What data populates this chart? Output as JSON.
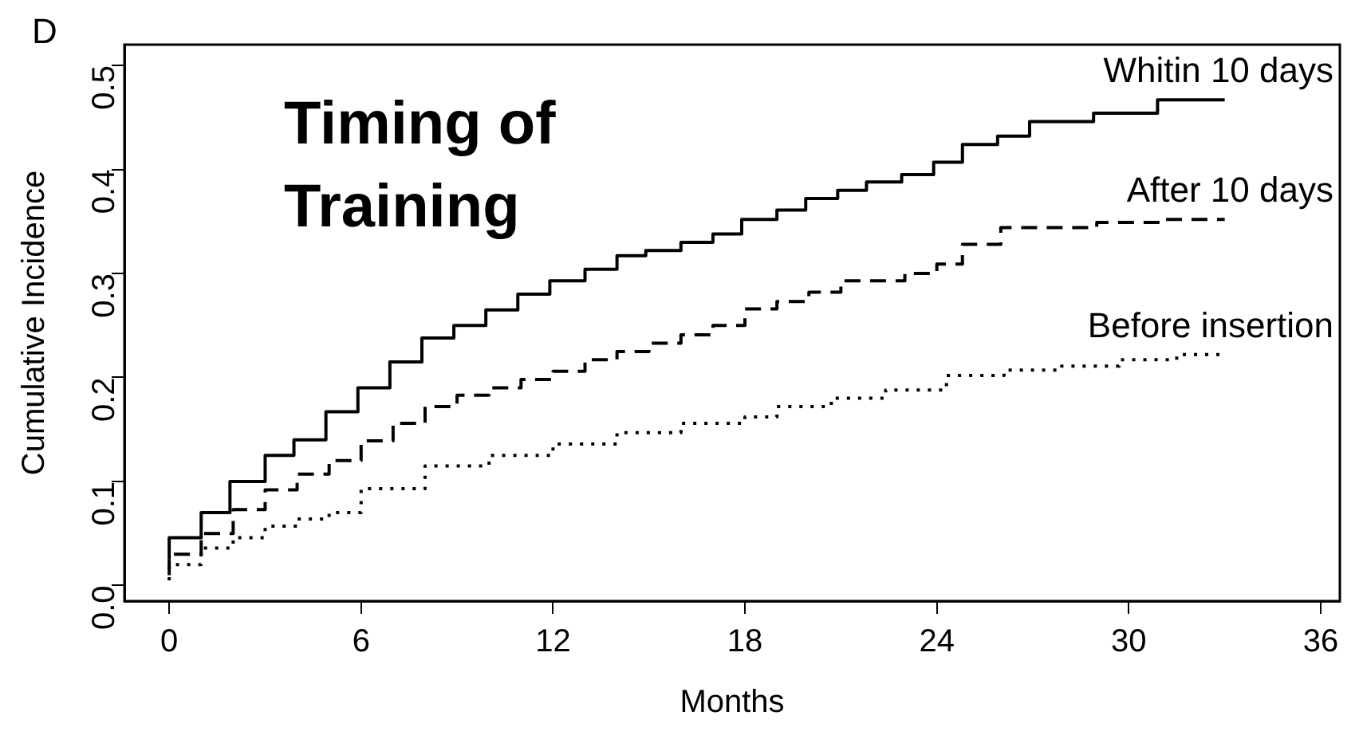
{
  "chart_data": {
    "type": "step",
    "title": "Timing of Training",
    "xlabel": "Months",
    "ylabel": "Cumulative Incidence",
    "annotations": [
      "D"
    ],
    "xlim": [
      -1.4,
      36.6
    ],
    "xticks": [
      0,
      6,
      12,
      18,
      24,
      30,
      36
    ],
    "ylim": [
      -0.015,
      0.52
    ],
    "yticks": [
      {
        "value": 0,
        "label": "0.0"
      },
      0.1,
      0.2,
      0.3,
      0.4,
      0.5
    ],
    "legend": false,
    "grid": false,
    "marker": "none",
    "series": [
      {
        "name": "Whitin 10 days",
        "color": "#000000",
        "line_style": "solid",
        "x": [
          0,
          1,
          1.9,
          3,
          3.9,
          4.9,
          5.9,
          6.9,
          7.9,
          8.9,
          9.9,
          10.9,
          11.9,
          13,
          14,
          14.9,
          16,
          17,
          17.9,
          19,
          19.9,
          20.9,
          21.8,
          22.9,
          23.9,
          24.8,
          25.9,
          26.9,
          28.9,
          30.9,
          33
        ],
        "values": [
          0.025,
          0.046,
          0.07,
          0.1,
          0.125,
          0.14,
          0.167,
          0.19,
          0.215,
          0.238,
          0.25,
          0.265,
          0.28,
          0.293,
          0.304,
          0.317,
          0.322,
          0.33,
          0.338,
          0.352,
          0.361,
          0.372,
          0.38,
          0.388,
          0.395,
          0.407,
          0.424,
          0.432,
          0.446,
          0.454,
          0.467
        ]
      },
      {
        "name": "After 10 days",
        "color": "#000000",
        "line_style": "dashed",
        "x": [
          0,
          1,
          2,
          3,
          4,
          5,
          6,
          7,
          8,
          9,
          10,
          11,
          12,
          13,
          14,
          15,
          16,
          17,
          18,
          19,
          20,
          21,
          23,
          24,
          24.8,
          26,
          29,
          31,
          33
        ],
        "values": [
          0.01,
          0.03,
          0.05,
          0.073,
          0.092,
          0.107,
          0.12,
          0.139,
          0.156,
          0.172,
          0.183,
          0.19,
          0.198,
          0.206,
          0.217,
          0.225,
          0.233,
          0.241,
          0.25,
          0.266,
          0.273,
          0.282,
          0.293,
          0.3,
          0.309,
          0.328,
          0.344,
          0.349,
          0.352
        ]
      },
      {
        "name": "Before insertion",
        "color": "#000000",
        "line_style": "dotted",
        "x": [
          0,
          1,
          2,
          3,
          4,
          5,
          6,
          8,
          10,
          12,
          14,
          16,
          18,
          19,
          20.7,
          22.4,
          24.3,
          26.1,
          27.9,
          29.7,
          31.5,
          33
        ],
        "values": [
          0.005,
          0.02,
          0.036,
          0.046,
          0.057,
          0.064,
          0.07,
          0.093,
          0.115,
          0.125,
          0.136,
          0.147,
          0.156,
          0.162,
          0.172,
          0.18,
          0.188,
          0.202,
          0.207,
          0.211,
          0.217,
          0.222
        ]
      }
    ]
  }
}
